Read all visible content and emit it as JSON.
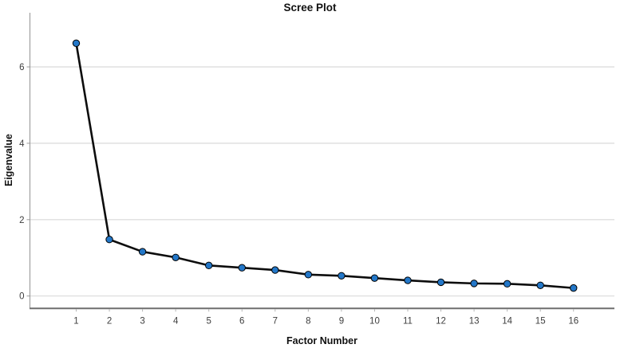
{
  "chart_data": {
    "type": "line",
    "title": "Scree Plot",
    "xlabel": "Factor Number",
    "ylabel": "Eigenvalue",
    "x": [
      1,
      2,
      3,
      4,
      5,
      6,
      7,
      8,
      9,
      10,
      11,
      12,
      13,
      14,
      15,
      16
    ],
    "values": [
      6.62,
      1.48,
      1.16,
      1.01,
      0.8,
      0.74,
      0.68,
      0.56,
      0.53,
      0.47,
      0.41,
      0.36,
      0.33,
      0.32,
      0.28,
      0.21
    ],
    "yticks": [
      0,
      2,
      4,
      6
    ],
    "ylim": [
      0,
      7.4
    ],
    "grid": true,
    "legend": "none",
    "line_color": "#0d0d0d",
    "marker_fill_color": "#2377C8",
    "marker_edge_color": "#000000",
    "gridline_color": "#d9d9d9",
    "y_spine_color": "#9a9a9a",
    "x_spine_color": "#6f6f6f"
  }
}
